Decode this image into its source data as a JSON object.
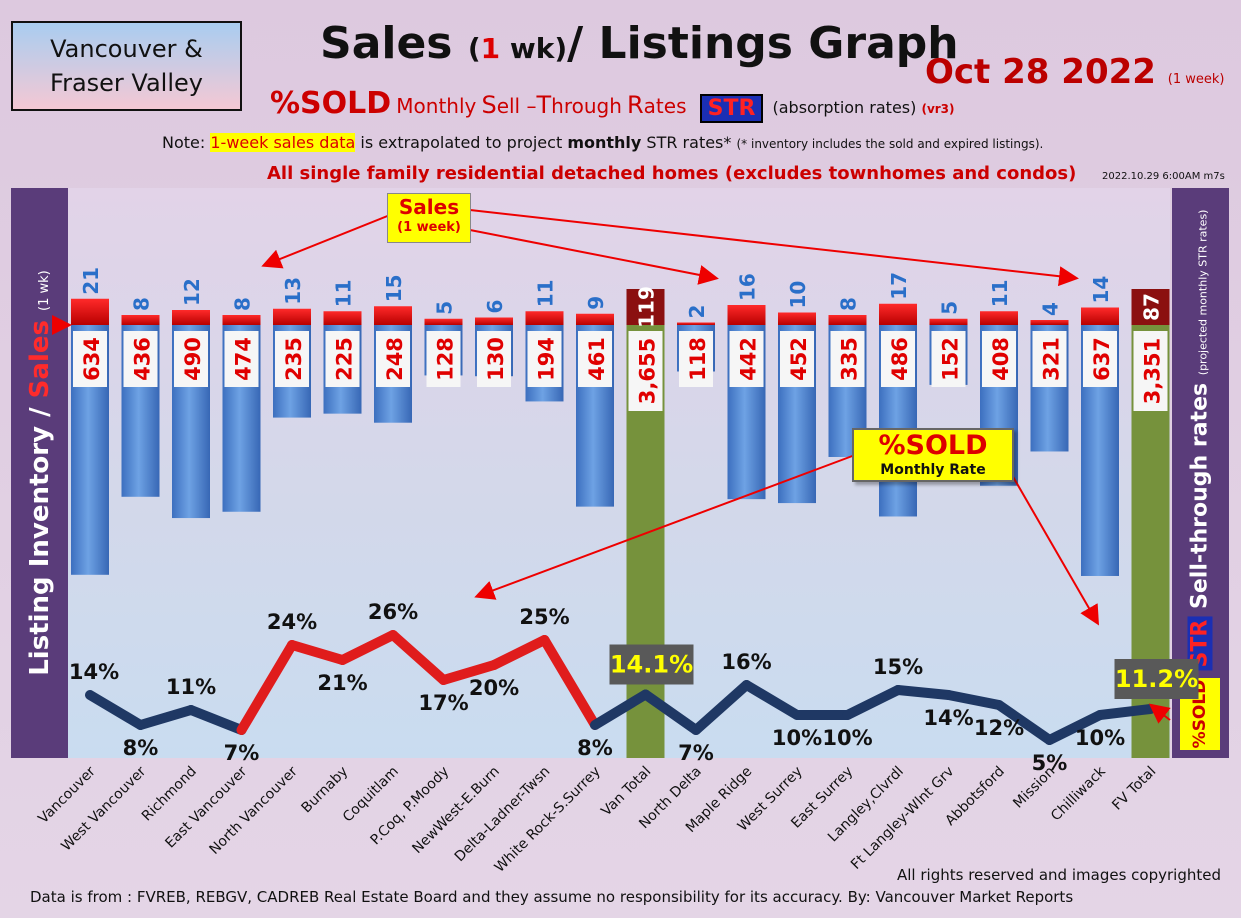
{
  "header": {
    "region_line1": "Vancouver &",
    "region_line2": "Fraser Valley",
    "title_main": "Sales",
    "title_paren_open": "(",
    "title_one": "1",
    "title_paren_close": "wk)",
    "title_rest": "/ Listings Graph",
    "date": "Oct 28  2022",
    "date_note": "(1 week)",
    "sub_sold": "%SOLD",
    "sub_m": "Monthly",
    "sub_S": "S",
    "sub_ell": "ell –",
    "sub_T": "T",
    "sub_hrough": "hrough",
    "sub_R": "R",
    "sub_ates": "ates",
    "str_badge": "STR",
    "absorption": "(absorption rates)",
    "version": "(vr3)",
    "note_prefix": "Note:",
    "note_highlight": "1-week sales data",
    "note_mid": "is extrapolated to project",
    "note_bold": "monthly",
    "note_rest": "STR rates*",
    "note_small": "(* inventory includes the sold and expired listings).",
    "homes": "All single family residential detached homes (excludes townhomes and condos)",
    "stamp": "2022.10.29 6:00AM m7s"
  },
  "side_labels": {
    "left_main": "Listing Inventory",
    "left_slash": "/",
    "left_sales": "Sales",
    "left_small": "(1 wk)",
    "right_str": "STR",
    "right_main": "Sell-through rates",
    "right_small": "(projected monthly STR rates)",
    "sold_side": "%SOLD"
  },
  "callouts": {
    "sales_title": "Sales",
    "sales_sub": "(1 week)",
    "sold_title": "%SOLD",
    "sold_sub": "Monthly Rate"
  },
  "footer": {
    "rights": "All rights reserved and  images copyrighted",
    "source": "Data is from : FVREB, REBGV, CADREB Real Estate Board and they assume no responsibility for its accuracy. By: Vancouver Market Reports"
  },
  "chart_data": {
    "type": "bar",
    "categories": [
      "Vancouver",
      "West Vancouver",
      "Richmond",
      "East Vancouver",
      "North Vancouver",
      "Burnaby",
      "Coquitlam",
      "P.Coq, P.Moody",
      "NewWest-E.Burn",
      "Delta-Ladner-Twsn",
      "White Rock-S.Surrey",
      "Van Total",
      "North Delta",
      "Maple Ridge",
      "West Surrey",
      "East Surrey",
      "Langley,Clvrdl",
      "Ft Langley-Wlnt Grv",
      "Abbotsford",
      "Mission",
      "Chilliwack",
      "FV Total"
    ],
    "sales": [
      21,
      8,
      12,
      8,
      13,
      11,
      15,
      5,
      6,
      11,
      9,
      119,
      2,
      16,
      10,
      8,
      17,
      5,
      11,
      4,
      14,
      87
    ],
    "sales_labels": [
      "21",
      "8",
      "12",
      "8",
      "13",
      "11",
      "15",
      "5",
      "6",
      "11",
      "9",
      "119",
      "2",
      "16",
      "10",
      "8",
      "17",
      "5",
      "11",
      "4",
      "14",
      "87"
    ],
    "inventory": [
      634,
      436,
      490,
      474,
      235,
      225,
      248,
      128,
      130,
      194,
      461,
      3655,
      118,
      442,
      452,
      335,
      486,
      152,
      408,
      321,
      637,
      3351
    ],
    "inventory_labels": [
      "634",
      "436",
      "490",
      "474",
      "235",
      "225",
      "248",
      "128",
      "130",
      "194",
      "461",
      "3,655",
      "118",
      "442",
      "452",
      "335",
      "486",
      "152",
      "408",
      "321",
      "637",
      "3,351"
    ],
    "str_percent": [
      14,
      8,
      11,
      7,
      24,
      21,
      26,
      17,
      20,
      25,
      8,
      14.1,
      7,
      16,
      10,
      10,
      15,
      14,
      12,
      5,
      10,
      11.2
    ],
    "str_labels": [
      "14%",
      "8%",
      "11%",
      "7%",
      "24%",
      "21%",
      "26%",
      "17%",
      "20%",
      "25%",
      "8%",
      "14.1%",
      "7%",
      "16%",
      "10%",
      "10%",
      "15%",
      "14%",
      "12%",
      "5%",
      "10%",
      "11.2%"
    ],
    "total_indices": [
      11,
      21
    ],
    "colors": {
      "inventory_bar": "#4f86d2",
      "sales_bar": "#ee1111",
      "total_bar": "#76923c",
      "total_sales": "#8b1010",
      "line_high": "#e01c1c",
      "line_low": "#1f3864"
    }
  }
}
